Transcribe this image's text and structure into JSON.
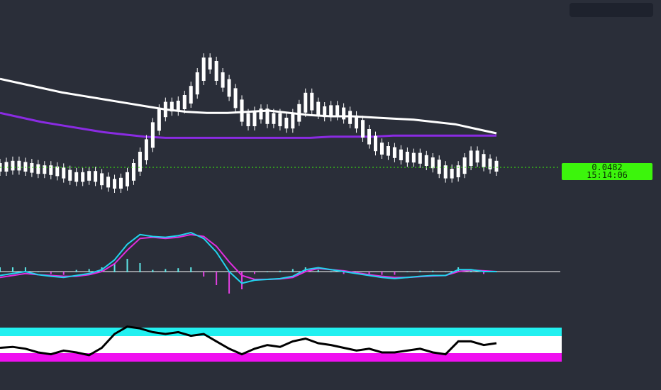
{
  "colors": {
    "background": "#2a2e39",
    "candles": "#ffffff",
    "ma_long": "#ffffff",
    "ma_short": "#8a2be2",
    "price_line": "#3cf50c",
    "macd_line": "#22d3ee",
    "signal_line": "#e22de0",
    "hist_pos": "#5ee6e6",
    "hist_neg": "#e040e0",
    "rsi_line": "#000000",
    "rsi_overbought_band": "#22f0f0",
    "rsi_oversold_band": "#f010f0",
    "rsi_mid_band": "#ffffff"
  },
  "price_label": {
    "price": "0.0482",
    "countdown": "15:14:06"
  },
  "chart_data": [
    {
      "type": "line",
      "panel": "price",
      "description_note": "",
      "series": [
        {
          "values": [
            0.0482,
            0.0483,
            0.0484,
            0.0483,
            0.0482,
            0.0481,
            0.048,
            0.048,
            0.0479,
            0.0478,
            0.0476,
            0.0474,
            0.0473,
            0.0474,
            0.0475,
            0.0473,
            0.047,
            0.0468,
            0.0467,
            0.0469,
            0.0474,
            0.0482,
            0.0492,
            0.0503,
            0.0518,
            0.053,
            0.0536,
            0.0535,
            0.0537,
            0.0542,
            0.055,
            0.0562,
            0.0575,
            0.0572,
            0.0562,
            0.0556,
            0.0548,
            0.0538,
            0.0526,
            0.0522,
            0.0528,
            0.053,
            0.0524,
            0.0526,
            0.0522,
            0.052,
            0.0526,
            0.0534,
            0.0544,
            0.0536,
            0.0532,
            0.053,
            0.0533,
            0.0531,
            0.0528,
            0.0524,
            0.052,
            0.0512,
            0.0506,
            0.05,
            0.0497,
            0.0496,
            0.0494,
            0.0492,
            0.049,
            0.0491,
            0.0489,
            0.0487,
            0.0485,
            0.048,
            0.0476,
            0.0477,
            0.048,
            0.0487,
            0.0493,
            0.049,
            0.0486,
            0.0484,
            0.0482
          ]
        }
      ]
    },
    {
      "type": "line",
      "panel": "price-moving-averages",
      "series": [
        {
          "values": [
            0.056,
            0.0556,
            0.0552,
            0.0548,
            0.0545,
            0.0542,
            0.0539,
            0.0536,
            0.0533,
            0.0531,
            0.053,
            0.053,
            0.0531,
            0.0532,
            0.053,
            0.0528,
            0.0527,
            0.0527,
            0.0526,
            0.0525,
            0.0524,
            0.0522,
            0.052,
            0.0516,
            0.0512
          ]
        },
        {
          "values": [
            0.053,
            0.0526,
            0.0522,
            0.0519,
            0.0516,
            0.0513,
            0.0511,
            0.0509,
            0.0508,
            0.0508,
            0.0508,
            0.0508,
            0.0508,
            0.0508,
            0.0508,
            0.0508,
            0.0509,
            0.0509,
            0.0509,
            0.051,
            0.051,
            0.051,
            0.051,
            0.051,
            0.051
          ]
        }
      ]
    },
    {
      "type": "line",
      "panel": "macd",
      "series": [
        {
          "values": [
            -0.1,
            -0.05,
            0,
            -0.08,
            -0.12,
            -0.15,
            -0.1,
            -0.05,
            0.05,
            0.3,
            0.7,
            0.95,
            0.9,
            0.88,
            0.92,
            1.0,
            0.85,
            0.5,
            0.0,
            -0.3,
            -0.22,
            -0.2,
            -0.18,
            -0.12,
            0.05,
            0.1,
            0.05,
            0.0,
            -0.05,
            -0.1,
            -0.15,
            -0.18,
            -0.15,
            -0.12,
            -0.1,
            -0.1,
            0.05,
            0.05,
            0.0,
            0.0
          ]
        },
        {
          "values": [
            -0.15,
            -0.1,
            -0.05,
            -0.08,
            -0.1,
            -0.12,
            -0.12,
            -0.08,
            0.0,
            0.2,
            0.55,
            0.85,
            0.88,
            0.85,
            0.88,
            0.95,
            0.9,
            0.65,
            0.25,
            -0.1,
            -0.2,
            -0.2,
            -0.19,
            -0.15,
            0.0,
            0.08,
            0.05,
            0.02,
            -0.03,
            -0.08,
            -0.12,
            -0.15,
            -0.15,
            -0.13,
            -0.11,
            -0.1,
            0.0,
            0.04,
            0.02,
            0.0
          ]
        }
      ]
    },
    {
      "type": "line",
      "panel": "rsi",
      "series": [
        {
          "values": [
            45,
            46,
            44,
            40,
            38,
            42,
            40,
            37,
            45,
            60,
            68,
            66,
            62,
            60,
            62,
            58,
            60,
            52,
            44,
            38,
            44,
            48,
            46,
            52,
            55,
            50,
            48,
            45,
            42,
            44,
            40,
            40,
            42,
            44,
            40,
            38,
            52,
            52,
            48,
            50
          ]
        }
      ]
    }
  ]
}
